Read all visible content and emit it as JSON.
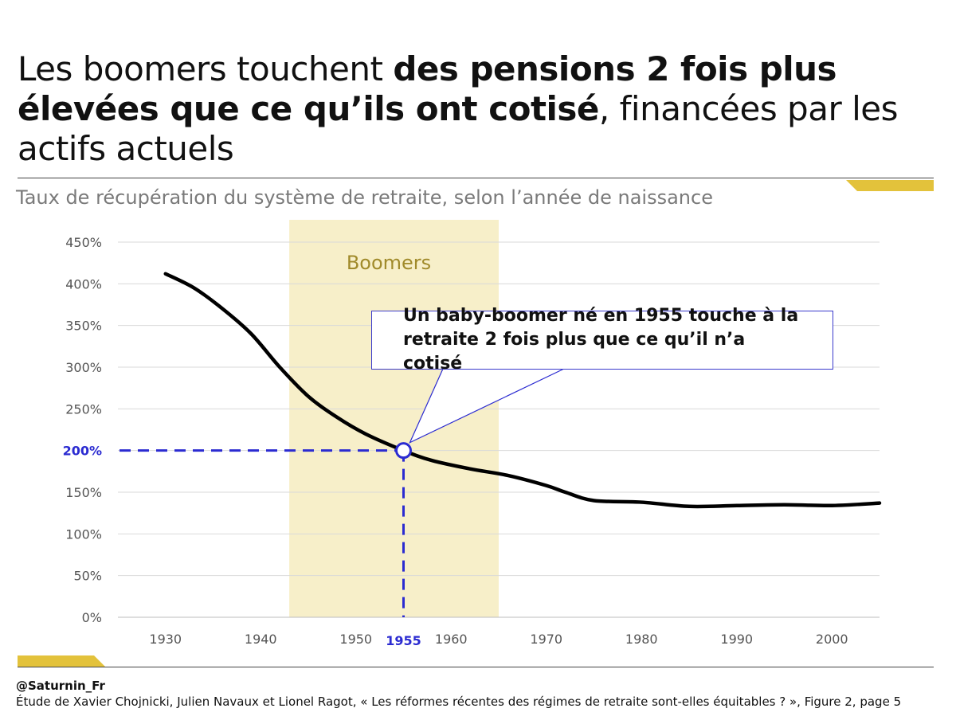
{
  "header": {
    "title_part1": "Les boomers touchent ",
    "title_bold1": "des pensions 2 fois plus élevées que ce qu’ils ont cotisé",
    "title_part2": ", financées par les actifs actuels"
  },
  "footer": {
    "handle": "@Saturnin_Fr",
    "source": "Étude de Xavier Chojnicki, Julien Navaux et Lionel Ragot, « Les réformes récentes des régimes de retraite sont-elles équitables ? », Figure 2, page 5"
  },
  "colors": {
    "accent_gold": "#e3c23b",
    "band_fill": "#f7efc9",
    "highlight_blue": "#2b2bd1",
    "line": "#000000"
  },
  "chart_data": {
    "type": "line",
    "title": "Taux de récupération du système de retraite, selon l’année de naissance",
    "xlabel": "",
    "ylabel": "",
    "xlim": [
      1925,
      2005
    ],
    "ylim": [
      0,
      450
    ],
    "x_ticks": [
      1930,
      1940,
      1950,
      1960,
      1970,
      1980,
      1990,
      2000
    ],
    "y_ticks": [
      0,
      50,
      100,
      150,
      200,
      250,
      300,
      350,
      400,
      450
    ],
    "y_tick_labels": [
      "0%",
      "50%",
      "100%",
      "150%",
      "200%",
      "250%",
      "300%",
      "350%",
      "400%",
      "450%"
    ],
    "grid": true,
    "series": [
      {
        "name": "Taux de récupération",
        "x": [
          1930,
          1933,
          1936,
          1939,
          1942,
          1945,
          1948,
          1951,
          1955,
          1958,
          1962,
          1966,
          1970,
          1972,
          1975,
          1980,
          1985,
          1990,
          1995,
          2000,
          2005
        ],
        "y": [
          412,
          395,
          370,
          340,
          300,
          265,
          240,
          220,
          200,
          188,
          178,
          170,
          158,
          150,
          140,
          138,
          133,
          134,
          135,
          134,
          137
        ]
      }
    ],
    "band": {
      "label": "Boomers",
      "x_start": 1943,
      "x_end": 1965
    },
    "highlight": {
      "x": 1955,
      "y": 200,
      "x_label": "1955",
      "y_label": "200%"
    },
    "annotation": "Un baby-boomer né en 1955 touche à la retraite 2 fois plus que ce qu’il n’a cotisé"
  }
}
